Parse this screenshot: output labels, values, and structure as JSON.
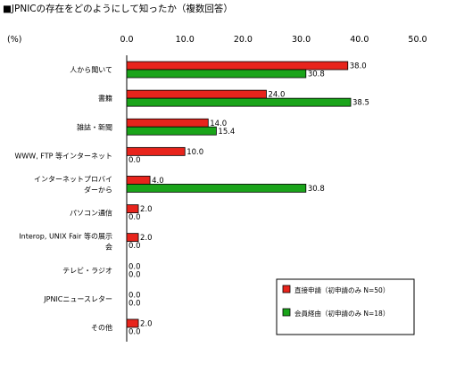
{
  "chart_data": {
    "type": "bar",
    "orientation": "horizontal",
    "title": "■JPNICの存在をどのようにして知ったか（複数回答）",
    "unit_label": "(%)",
    "categories": [
      [
        "人から聞いて"
      ],
      [
        "書籍"
      ],
      [
        "雑誌・新聞"
      ],
      [
        "WWW, FTP 等インターネット"
      ],
      [
        "インターネットプロバイ",
        "ダーから"
      ],
      [
        "パソコン通信"
      ],
      [
        "Interop, UNIX Fair 等の展示",
        "会"
      ],
      [
        "テレビ・ラジオ"
      ],
      [
        "JPNICニュースレター"
      ],
      [
        "その他"
      ]
    ],
    "series": [
      {
        "name": "直接申請（初申請のみ N=50）",
        "color": "#e8241c",
        "values": [
          38.0,
          24.0,
          14.0,
          10.0,
          4.0,
          2.0,
          2.0,
          0.0,
          0.0,
          2.0
        ]
      },
      {
        "name": "会員経由（初申請のみ N=18）",
        "color": "#1aa41a",
        "values": [
          30.8,
          38.5,
          15.4,
          0.0,
          30.8,
          0.0,
          0.0,
          0.0,
          0.0,
          0.0
        ]
      }
    ],
    "xlim": [
      0,
      50
    ],
    "xticks": [
      "0.0",
      "10.0",
      "20.0",
      "30.0",
      "40.0",
      "50.0"
    ],
    "grid": false,
    "legend_position": "bottom-right"
  }
}
